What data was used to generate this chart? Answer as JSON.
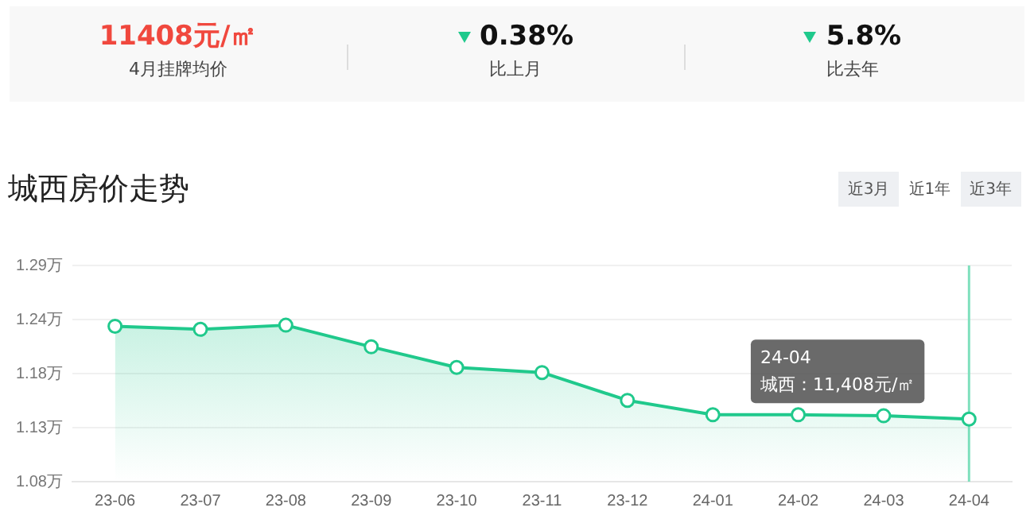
{
  "chart_data": [
    {
      "type": "other",
      "annotations": [
        "11408元/㎡",
        "4月挂牌均价",
        "0.38%",
        "比上月",
        "5.8%",
        "比去年"
      ]
    },
    {
      "type": "area",
      "title": "城西房价走势",
      "categories": [
        "23-06",
        "23-07",
        "23-08",
        "23-09",
        "23-10",
        "23-11",
        "23-12",
        "24-01",
        "24-02",
        "24-03",
        "24-04"
      ],
      "series": [
        {
          "color": "#20c98c",
          "values": [
            1.231,
            1.228,
            1.232,
            1.211,
            1.191,
            1.186,
            1.159,
            1.145,
            1.145,
            1.144,
            1.1408
          ]
        }
      ],
      "ylim": [
        1.08,
        1.29
      ],
      "yticks": [
        {
          "value": 1.08,
          "label": "1.08万"
        },
        {
          "value": 1.1325,
          "label": "1.13万"
        },
        {
          "value": 1.185,
          "label": "1.18万"
        },
        {
          "value": 1.2375,
          "label": "1.24万"
        },
        {
          "value": 1.29,
          "label": "1.29万"
        }
      ],
      "grid": "y",
      "marker": "circle",
      "line_style": "solid",
      "ref_lines": [
        {
          "axis": "x",
          "value": "24-04",
          "color": "#7fe0bd"
        }
      ],
      "annotations": [
        "近3月",
        "近1年",
        "近3年",
        "24-04\n城西：11,408元/㎡"
      ]
    }
  ]
}
